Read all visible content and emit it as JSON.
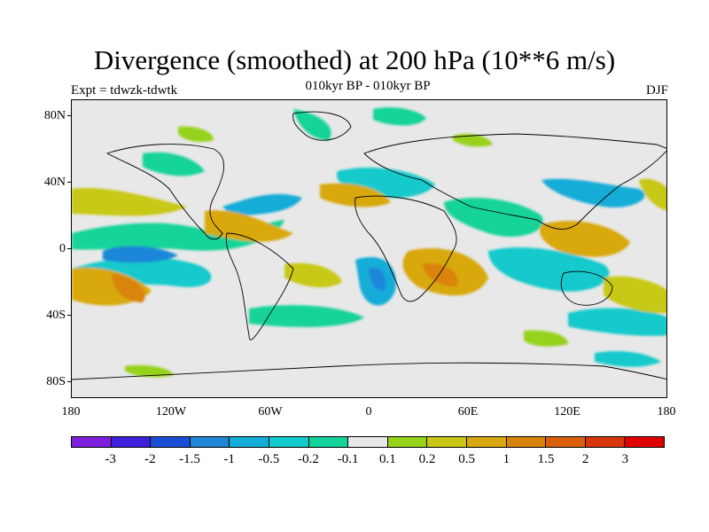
{
  "title": "Divergence (smoothed) at 200 hPa (10**6 m/s)",
  "subtitle": "010kyr BP - 010kyr BP",
  "experiment": "Expt = tdwzk-tdwtk",
  "season": "DJF",
  "lat_labels": [
    "80N",
    "40N",
    "0",
    "40S",
    "80S"
  ],
  "lon_labels": [
    "180",
    "120W",
    "60W",
    "0",
    "60E",
    "120E",
    "180"
  ],
  "colorbar": {
    "colors": [
      "#7d1fdc",
      "#3d1fdc",
      "#1b4fd8",
      "#1f86d8",
      "#14acd8",
      "#12c9cc",
      "#13d39a",
      "#e8e8e8",
      "#96d21a",
      "#c8c814",
      "#d8a810",
      "#d8840c",
      "#d8600c",
      "#d8360c",
      "#e00000"
    ],
    "labels": [
      "-3",
      "-2",
      "-1.5",
      "-1",
      "-0.5",
      "-0.2",
      "-0.1",
      "0.1",
      "0.2",
      "0.5",
      "1",
      "1.5",
      "2",
      "3"
    ]
  }
}
